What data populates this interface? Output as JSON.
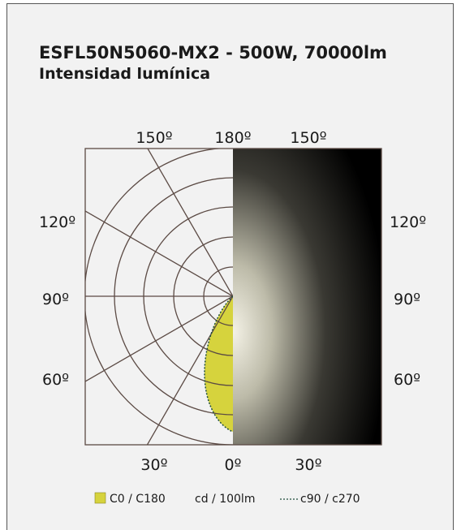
{
  "header": {
    "title": "ESFL50N5060-MX2 - 500W, 70000lm",
    "subtitle": "Intensidad lumínica"
  },
  "angle_labels": {
    "top": [
      "150º",
      "180º",
      "150º"
    ],
    "left": [
      "120º",
      "90º",
      "60º"
    ],
    "right": [
      "120º",
      "90º",
      "60º"
    ],
    "bottom": [
      "30º",
      "0º",
      "30º"
    ]
  },
  "legend": {
    "series_1": "C0 / C180",
    "unit": "cd / 100lm",
    "series_2": "c90 / c270"
  }
}
